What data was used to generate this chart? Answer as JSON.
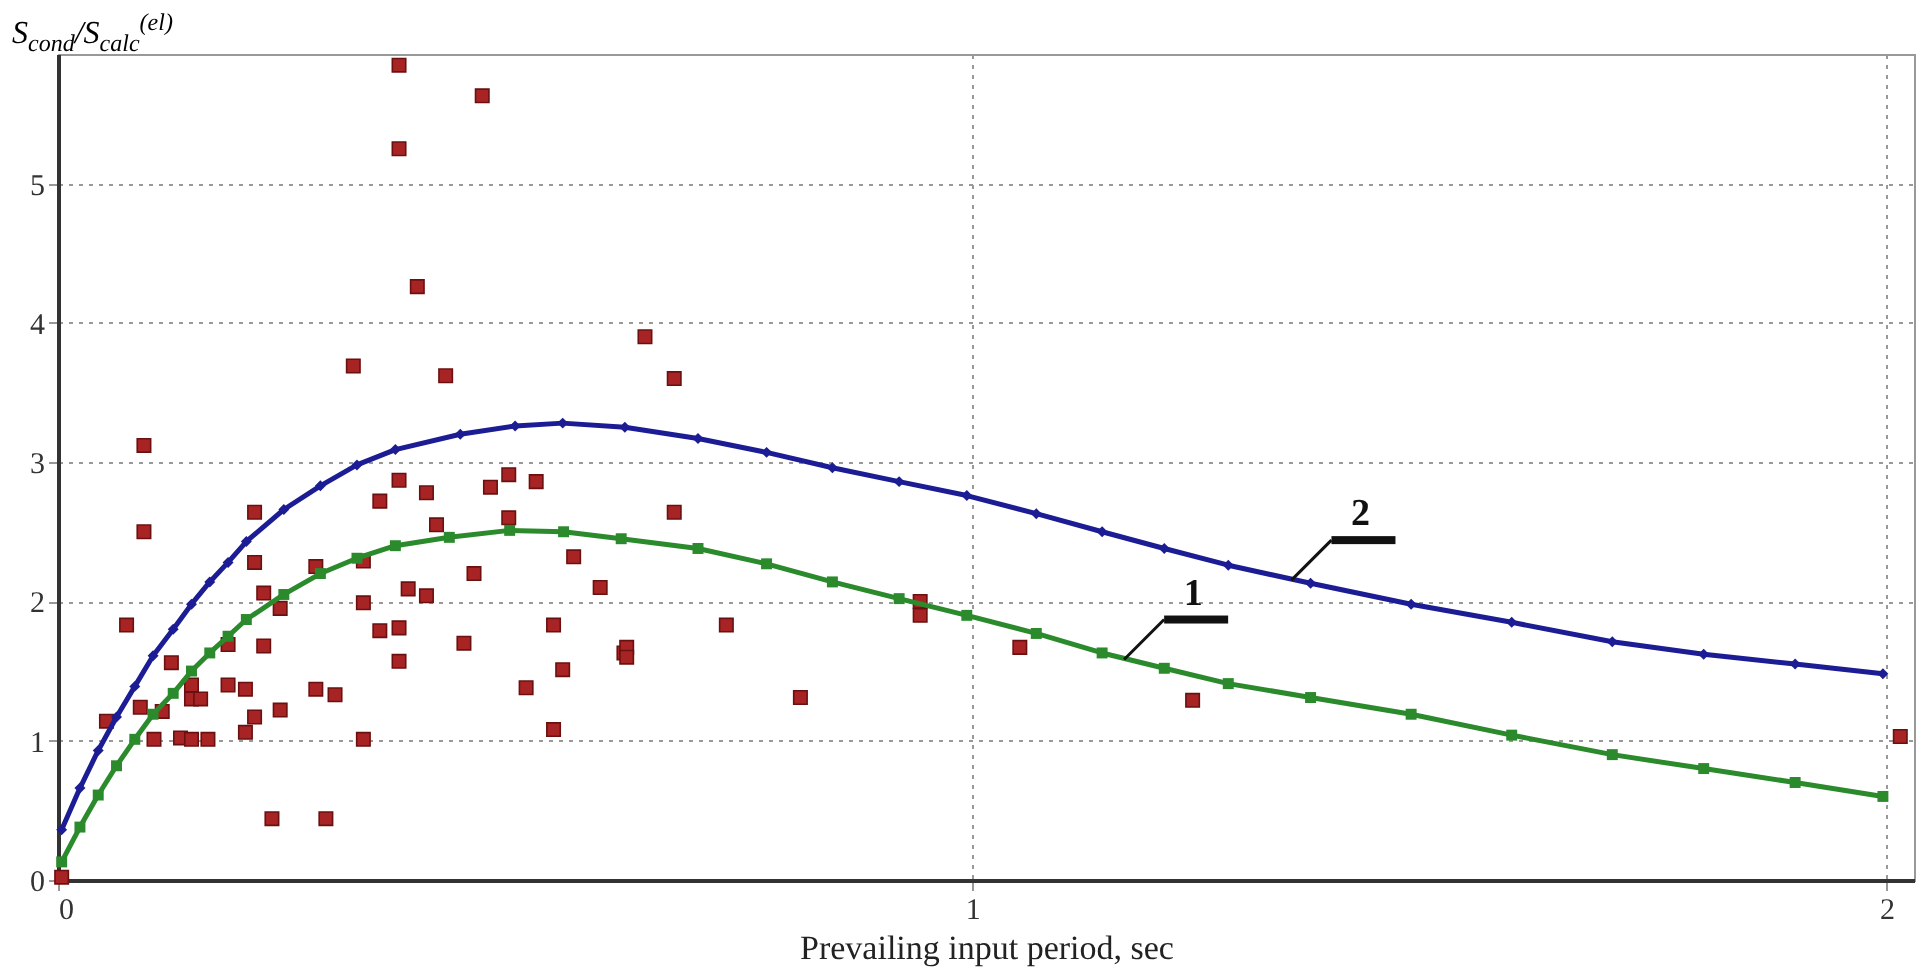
{
  "chart_data": {
    "type": "line",
    "xlabel": "Prevailing input period, sec",
    "ylabel": "S$_{cond}$/S$_{calc}$$^{(el)}$",
    "xlim": [
      0,
      2.03
    ],
    "ylim": [
      0,
      5.93
    ],
    "xticks": [
      0,
      1,
      2
    ],
    "yticks": [
      0,
      1,
      2,
      3,
      4,
      5
    ],
    "grid": true,
    "line_style": "solid",
    "annotations": [
      {
        "text": "1",
        "x": 1.165,
        "y": 1.59
      },
      {
        "text": "2",
        "x": 1.348,
        "y": 2.16
      }
    ],
    "series": [
      {
        "type": "scatter",
        "marker": "square",
        "color": "#a82424",
        "x": [
          0.004,
          0.373,
          0.464,
          0.373,
          0.393,
          0.323,
          0.424,
          0.094,
          0.094,
          0.075,
          0.053,
          0.09,
          0.114,
          0.105,
          0.124,
          0.146,
          0.146,
          0.156,
          0.134,
          0.146,
          0.164,
          0.186,
          0.186,
          0.205,
          0.205,
          0.215,
          0.215,
          0.215,
          0.225,
          0.225,
          0.243,
          0.243,
          0.234,
          0.293,
          0.282,
          0.303,
          0.282,
          0.334,
          0.334,
          0.334,
          0.352,
          0.352,
          0.373,
          0.373,
          0.373,
          0.383,
          0.403,
          0.403,
          0.414,
          0.444,
          0.455,
          0.473,
          0.493,
          0.493,
          0.523,
          0.512,
          0.542,
          0.552,
          0.542,
          0.564,
          0.593,
          0.619,
          0.642,
          0.674,
          0.674,
          0.622,
          0.622,
          0.731,
          0.812,
          0.943,
          0.943,
          1.052,
          1.241,
          2.015
        ],
        "values": [
          0.02,
          5.85,
          5.63,
          5.25,
          4.26,
          3.69,
          3.62,
          3.12,
          2.5,
          1.83,
          1.14,
          1.24,
          1.21,
          1.01,
          1.56,
          1.4,
          1.3,
          1.3,
          1.02,
          1.01,
          1.01,
          1.69,
          1.4,
          1.37,
          1.06,
          1.17,
          2.64,
          2.28,
          2.06,
          1.68,
          1.95,
          1.22,
          0.44,
          0.44,
          1.37,
          1.33,
          2.25,
          2.29,
          1.99,
          1.01,
          2.72,
          1.79,
          2.87,
          1.81,
          1.57,
          2.09,
          2.78,
          2.04,
          2.55,
          1.7,
          2.2,
          2.82,
          2.91,
          2.6,
          2.86,
          1.38,
          1.83,
          1.51,
          1.08,
          2.32,
          2.1,
          1.63,
          3.9,
          3.6,
          2.64,
          1.67,
          1.6,
          1.83,
          1.31,
          2.0,
          1.9,
          1.67,
          1.29,
          1.03
        ]
      },
      {
        "marker": "square",
        "color": "#2b8a2b",
        "x": [
          0.004,
          0.024,
          0.044,
          0.064,
          0.084,
          0.104,
          0.126,
          0.146,
          0.166,
          0.186,
          0.206,
          0.247,
          0.287,
          0.327,
          0.369,
          0.428,
          0.494,
          0.553,
          0.616,
          0.7,
          0.775,
          0.847,
          0.92,
          0.994,
          1.07,
          1.142,
          1.21,
          1.28,
          1.37,
          1.48,
          1.59,
          1.7,
          1.8,
          1.9,
          1.996
        ],
        "values": [
          0.13,
          0.38,
          0.61,
          0.82,
          1.01,
          1.19,
          1.34,
          1.5,
          1.63,
          1.75,
          1.87,
          2.05,
          2.2,
          2.31,
          2.4,
          2.46,
          2.51,
          2.5,
          2.45,
          2.38,
          2.27,
          2.14,
          2.02,
          1.9,
          1.77,
          1.63,
          1.52,
          1.41,
          1.31,
          1.19,
          1.04,
          0.9,
          0.8,
          0.7,
          0.6
        ]
      },
      {
        "marker": "diamond",
        "color": "#1c1c94",
        "x": [
          0.004,
          0.024,
          0.044,
          0.064,
          0.084,
          0.104,
          0.126,
          0.146,
          0.166,
          0.186,
          0.206,
          0.247,
          0.287,
          0.327,
          0.369,
          0.44,
          0.5,
          0.552,
          0.62,
          0.7,
          0.775,
          0.847,
          0.92,
          0.994,
          1.07,
          1.142,
          1.21,
          1.28,
          1.37,
          1.48,
          1.59,
          1.7,
          1.8,
          1.9,
          1.996
        ],
        "values": [
          0.36,
          0.66,
          0.93,
          1.17,
          1.39,
          1.61,
          1.8,
          1.98,
          2.14,
          2.28,
          2.43,
          2.66,
          2.83,
          2.98,
          3.09,
          3.2,
          3.26,
          3.28,
          3.25,
          3.17,
          3.07,
          2.96,
          2.86,
          2.76,
          2.63,
          2.5,
          2.38,
          2.26,
          2.13,
          1.98,
          1.85,
          1.71,
          1.62,
          1.55,
          1.48
        ]
      }
    ]
  }
}
